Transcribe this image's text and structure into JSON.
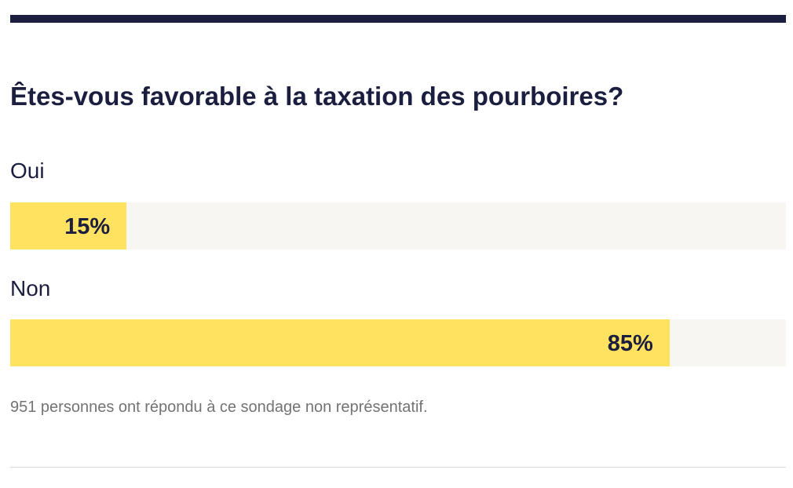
{
  "poll": {
    "question": "Êtes-vous favorable à la taxation des pourboires?",
    "footnote": "951 personnes ont répondu à ce sondage non représentatif."
  },
  "colors": {
    "bar": "#ffe25f",
    "track": "#f7f6f2",
    "text": "#1c1e3f",
    "muted": "#737373"
  },
  "chart_data": {
    "type": "bar",
    "orientation": "horizontal",
    "title": "Êtes-vous favorable à la taxation des pourboires?",
    "categories": [
      "Oui",
      "Non"
    ],
    "values": [
      15,
      85
    ],
    "value_labels": [
      "15%",
      "85%"
    ],
    "unit": "%",
    "xlim": [
      0,
      100
    ],
    "grid": false,
    "legend": "none"
  }
}
